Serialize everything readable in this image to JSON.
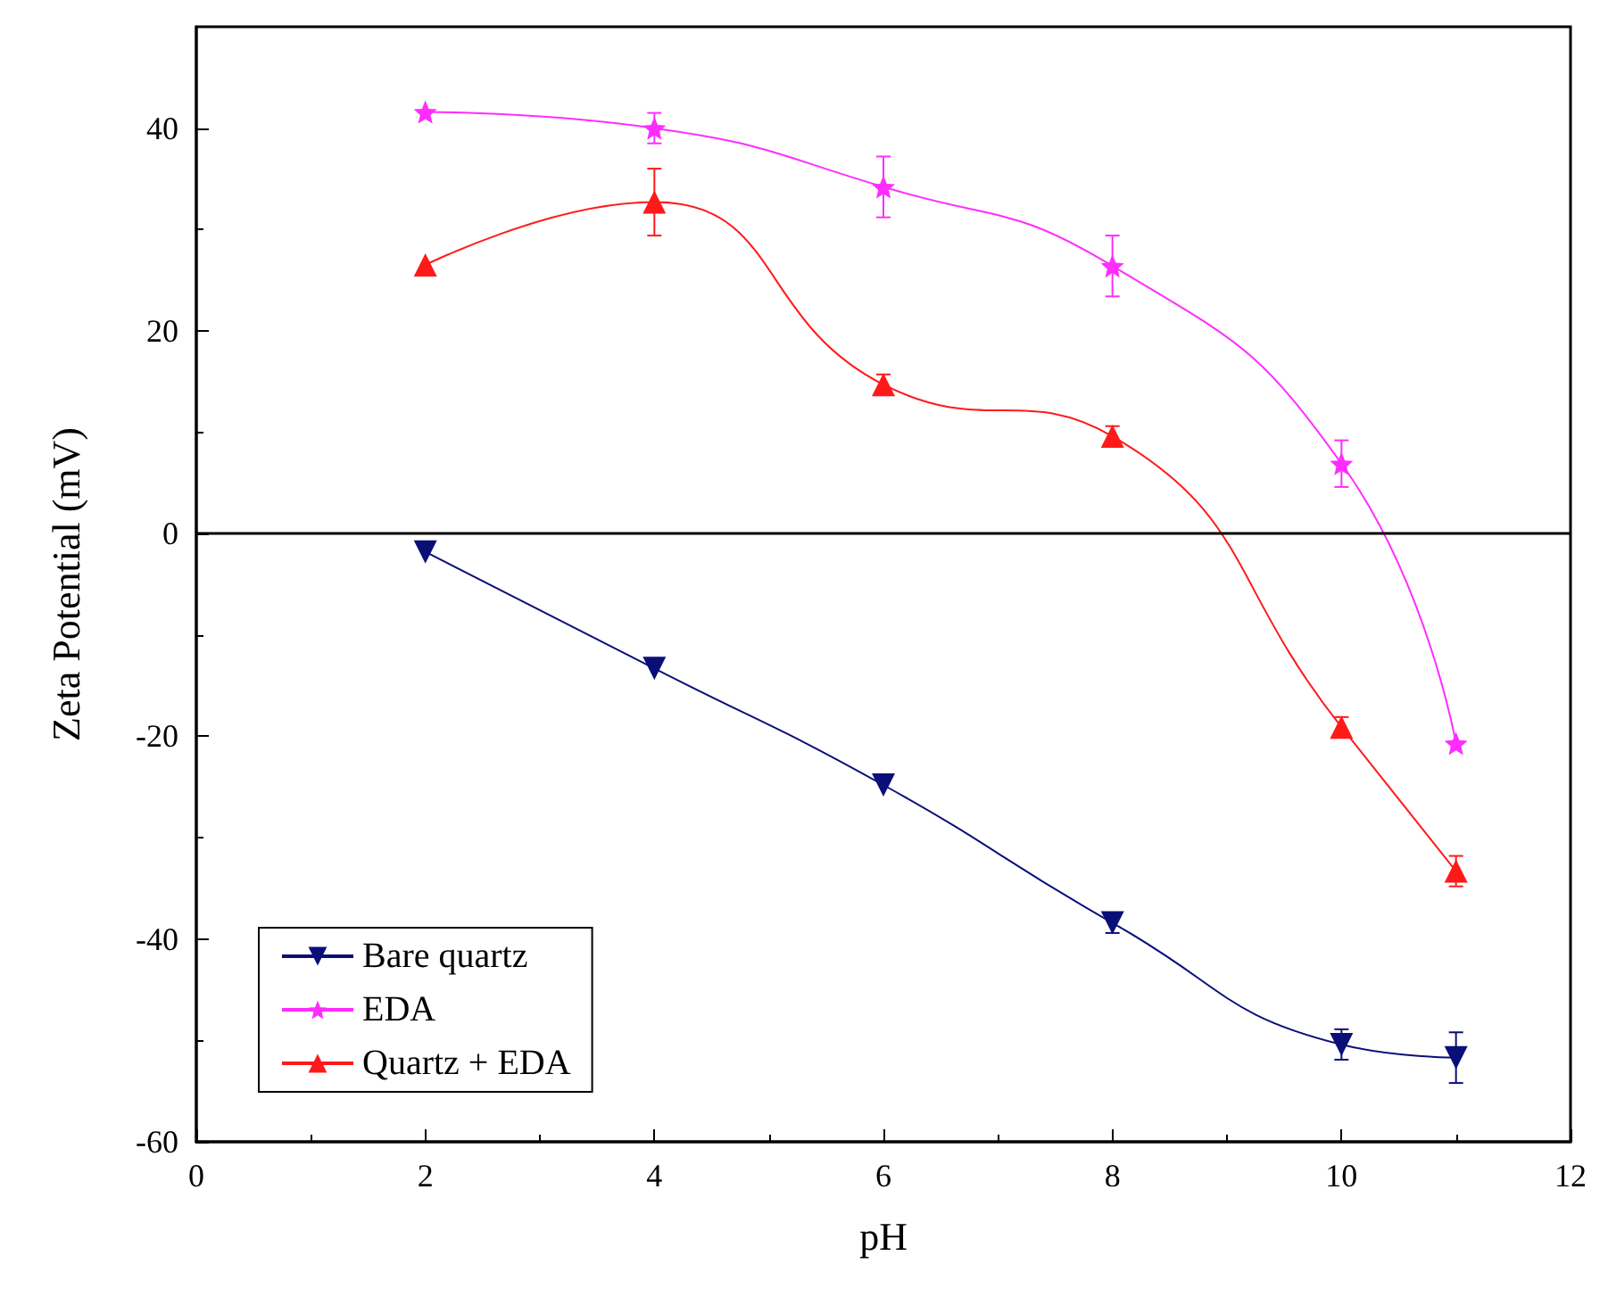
{
  "chart_data": {
    "type": "line",
    "xlabel": "pH",
    "ylabel": "Zeta Potential (mV)",
    "x": [
      2,
      4,
      6,
      8,
      10,
      11
    ],
    "series": [
      {
        "name": "Bare quartz",
        "color": "#0a0f78",
        "marker": "triangle_down",
        "values": [
          -1.8,
          -13.3,
          -24.8,
          -38.4,
          -50.4,
          -51.7
        ],
        "errors": [
          null,
          null,
          null,
          1,
          1.5,
          2.5
        ]
      },
      {
        "name": "EDA",
        "color": "#ff2cff",
        "marker": "star",
        "values": [
          41.6,
          40,
          34.2,
          26.4,
          6.9,
          -20.7
        ],
        "errors": [
          null,
          1.5,
          3,
          3,
          2.3,
          null
        ]
      },
      {
        "name": "Quartz + EDA",
        "color": "#ff1a1a",
        "marker": "triangle",
        "values": [
          26.5,
          32.7,
          14.7,
          9.6,
          -19.1,
          -33.3
        ],
        "errors": [
          null,
          3.3,
          1,
          1,
          1,
          1.5
        ]
      }
    ],
    "xlim": [
      0,
      12
    ],
    "xticks": [
      0,
      2,
      4,
      6,
      8,
      10,
      12
    ],
    "ylim": [
      -60,
      50
    ],
    "yticks": [
      -60,
      -40,
      -20,
      0,
      20,
      40
    ],
    "ref_lines": [
      {
        "axis": "y",
        "value": 0,
        "color": "#000000"
      }
    ],
    "grid": false,
    "legend": "bottom left"
  }
}
